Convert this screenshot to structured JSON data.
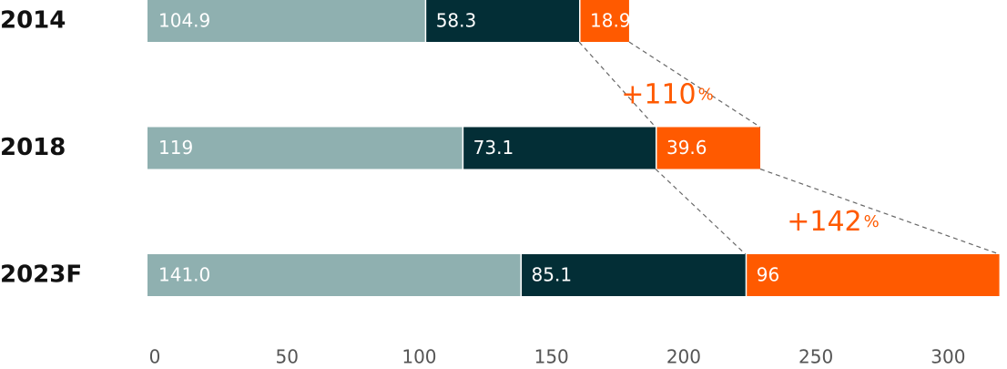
{
  "chart_data": {
    "type": "stacked-barh",
    "categories": [
      "2014",
      "2018",
      "2023F"
    ],
    "series": [
      {
        "color": "#8fb0b0",
        "values": [
          104.9,
          119,
          141.0
        ],
        "value_labels": [
          "104.9",
          "119",
          "141.0"
        ]
      },
      {
        "color": "#032e36",
        "values": [
          58.3,
          73.1,
          85.1
        ]
      },
      {
        "color": "#ff5a00",
        "values": [
          18.9,
          39.6,
          96
        ]
      }
    ],
    "xlim": [
      0,
      325
    ],
    "xticks": [
      0,
      50,
      100,
      150,
      200,
      250,
      300
    ],
    "annotations": [
      {
        "text": "+110",
        "unit": "%"
      },
      {
        "text": "+142",
        "unit": "%"
      }
    ]
  }
}
